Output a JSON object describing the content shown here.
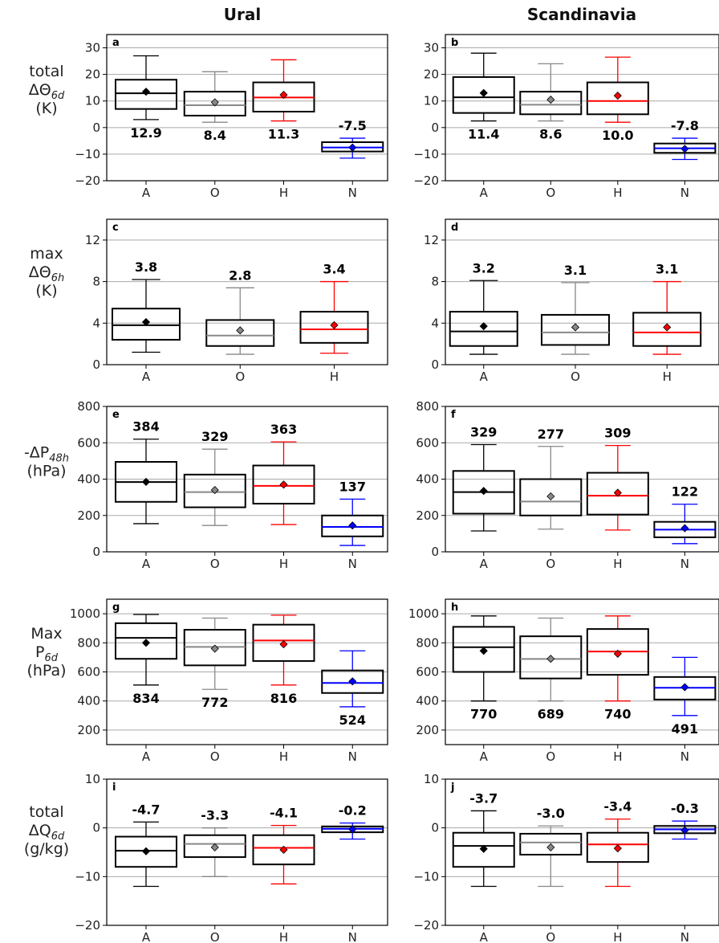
{
  "figure": {
    "column_titles": [
      "Ural",
      "Scandinavia"
    ],
    "row_labels": [
      {
        "lines": [
          "total",
          "ΔΘ|6d",
          "(K)"
        ]
      },
      {
        "lines": [
          "max",
          "ΔΘ|6h",
          "(K)"
        ]
      },
      {
        "lines": [
          "-ΔP|48h",
          "(hPa)"
        ]
      },
      {
        "lines": [
          "Max",
          "P|6d",
          "(hPa)"
        ]
      },
      {
        "lines": [
          "total",
          "ΔQ|6d",
          "(g/kg)"
        ]
      }
    ]
  },
  "colors": {
    "A": "#000000",
    "O": "#888888",
    "H": "#ff0000",
    "N": "#0000ff",
    "grid": "#aaaaaa"
  },
  "chart_data": [
    {
      "panel": "a",
      "type": "box",
      "column": "Ural",
      "row": 0,
      "ylim": [
        -20,
        35
      ],
      "yticks": [
        -20,
        -10,
        0,
        10,
        20,
        30
      ],
      "ytick_labels": [
        "−20",
        "−10",
        "0",
        "10",
        "20",
        "30"
      ],
      "categories": [
        "A",
        "O",
        "H",
        "N"
      ],
      "boxes": [
        {
          "cat": "A",
          "whislo": 3,
          "q1": 7,
          "med": 12.9,
          "q3": 18,
          "whishi": 27,
          "mean": 13.5,
          "label": "12.9",
          "label_pos": "below"
        },
        {
          "cat": "O",
          "whislo": 2,
          "q1": 4.5,
          "med": 8.4,
          "q3": 13.5,
          "whishi": 21,
          "mean": 9.5,
          "label": "8.4",
          "label_pos": "below"
        },
        {
          "cat": "H",
          "whislo": 2.5,
          "q1": 6,
          "med": 11.3,
          "q3": 17,
          "whishi": 25.5,
          "mean": 12.3,
          "label": "11.3",
          "label_pos": "below"
        },
        {
          "cat": "N",
          "whislo": -11.5,
          "q1": -9,
          "med": -7.5,
          "q3": -5.5,
          "whishi": -4,
          "mean": -7.5,
          "label": "-7.5",
          "label_pos": "above"
        }
      ]
    },
    {
      "panel": "b",
      "type": "box",
      "column": "Scandinavia",
      "row": 0,
      "ylim": [
        -20,
        35
      ],
      "yticks": [
        -20,
        -10,
        0,
        10,
        20,
        30
      ],
      "ytick_labels": [
        "−20",
        "−10",
        "0",
        "10",
        "20",
        "30"
      ],
      "categories": [
        "A",
        "O",
        "H",
        "N"
      ],
      "boxes": [
        {
          "cat": "A",
          "whislo": 2.5,
          "q1": 5.5,
          "med": 11.4,
          "q3": 19,
          "whishi": 28,
          "mean": 13,
          "label": "11.4",
          "label_pos": "below"
        },
        {
          "cat": "O",
          "whislo": 2.5,
          "q1": 5,
          "med": 8.6,
          "q3": 13.5,
          "whishi": 24,
          "mean": 10.5,
          "label": "8.6",
          "label_pos": "below"
        },
        {
          "cat": "H",
          "whislo": 2,
          "q1": 5,
          "med": 10.0,
          "q3": 17,
          "whishi": 26.5,
          "mean": 12,
          "label": "10.0",
          "label_pos": "below"
        },
        {
          "cat": "N",
          "whislo": -12,
          "q1": -9.5,
          "med": -7.8,
          "q3": -6,
          "whishi": -4,
          "mean": -8,
          "label": "-7.8",
          "label_pos": "above"
        }
      ]
    },
    {
      "panel": "c",
      "type": "box",
      "column": "Ural",
      "row": 1,
      "ylim": [
        0,
        14
      ],
      "yticks": [
        0,
        4,
        8,
        12
      ],
      "ytick_labels": [
        "0",
        "4",
        "8",
        "12"
      ],
      "categories": [
        "A",
        "O",
        "H"
      ],
      "boxes": [
        {
          "cat": "A",
          "whislo": 1.2,
          "q1": 2.4,
          "med": 3.8,
          "q3": 5.4,
          "whishi": 8.2,
          "mean": 4.1,
          "label": "3.8",
          "label_pos": "above"
        },
        {
          "cat": "O",
          "whislo": 1.0,
          "q1": 1.8,
          "med": 2.8,
          "q3": 4.3,
          "whishi": 7.4,
          "mean": 3.3,
          "label": "2.8",
          "label_pos": "above"
        },
        {
          "cat": "H",
          "whislo": 1.1,
          "q1": 2.1,
          "med": 3.4,
          "q3": 5.1,
          "whishi": 8.0,
          "mean": 3.8,
          "label": "3.4",
          "label_pos": "above"
        }
      ]
    },
    {
      "panel": "d",
      "type": "box",
      "column": "Scandinavia",
      "row": 1,
      "ylim": [
        0,
        14
      ],
      "yticks": [
        0,
        4,
        8,
        12
      ],
      "ytick_labels": [
        "0",
        "4",
        "8",
        "12"
      ],
      "categories": [
        "A",
        "O",
        "H"
      ],
      "boxes": [
        {
          "cat": "A",
          "whislo": 1.0,
          "q1": 1.8,
          "med": 3.2,
          "q3": 5.1,
          "whishi": 8.1,
          "mean": 3.7,
          "label": "3.2",
          "label_pos": "above"
        },
        {
          "cat": "O",
          "whislo": 1.0,
          "q1": 1.9,
          "med": 3.1,
          "q3": 4.8,
          "whishi": 7.9,
          "mean": 3.6,
          "label": "3.1",
          "label_pos": "above"
        },
        {
          "cat": "H",
          "whislo": 1.0,
          "q1": 1.8,
          "med": 3.1,
          "q3": 5.0,
          "whishi": 8.0,
          "mean": 3.6,
          "label": "3.1",
          "label_pos": "above"
        }
      ]
    },
    {
      "panel": "e",
      "type": "box",
      "column": "Ural",
      "row": 2,
      "ylim": [
        0,
        800
      ],
      "yticks": [
        0,
        200,
        400,
        600,
        800
      ],
      "ytick_labels": [
        "0",
        "200",
        "400",
        "600",
        "800"
      ],
      "categories": [
        "A",
        "O",
        "H",
        "N"
      ],
      "boxes": [
        {
          "cat": "A",
          "whislo": 155,
          "q1": 275,
          "med": 384,
          "q3": 495,
          "whishi": 620,
          "mean": 385,
          "label": "384",
          "label_pos": "above"
        },
        {
          "cat": "O",
          "whislo": 145,
          "q1": 245,
          "med": 329,
          "q3": 425,
          "whishi": 565,
          "mean": 340,
          "label": "329",
          "label_pos": "above"
        },
        {
          "cat": "H",
          "whislo": 150,
          "q1": 265,
          "med": 363,
          "q3": 475,
          "whishi": 605,
          "mean": 370,
          "label": "363",
          "label_pos": "above"
        },
        {
          "cat": "N",
          "whislo": 35,
          "q1": 85,
          "med": 137,
          "q3": 200,
          "whishi": 290,
          "mean": 145,
          "label": "137",
          "label_pos": "above"
        }
      ]
    },
    {
      "panel": "f",
      "type": "box",
      "column": "Scandinavia",
      "row": 2,
      "ylim": [
        0,
        800
      ],
      "yticks": [
        0,
        200,
        400,
        600,
        800
      ],
      "ytick_labels": [
        "0",
        "200",
        "400",
        "600",
        "800"
      ],
      "categories": [
        "A",
        "O",
        "H",
        "N"
      ],
      "boxes": [
        {
          "cat": "A",
          "whislo": 115,
          "q1": 210,
          "med": 329,
          "q3": 445,
          "whishi": 590,
          "mean": 335,
          "label": "329",
          "label_pos": "above"
        },
        {
          "cat": "O",
          "whislo": 125,
          "q1": 200,
          "med": 277,
          "q3": 400,
          "whishi": 580,
          "mean": 305,
          "label": "277",
          "label_pos": "above"
        },
        {
          "cat": "H",
          "whislo": 120,
          "q1": 205,
          "med": 309,
          "q3": 435,
          "whishi": 585,
          "mean": 325,
          "label": "309",
          "label_pos": "above"
        },
        {
          "cat": "N",
          "whislo": 45,
          "q1": 80,
          "med": 122,
          "q3": 165,
          "whishi": 262,
          "mean": 130,
          "label": "122",
          "label_pos": "above"
        }
      ]
    },
    {
      "panel": "g",
      "type": "box",
      "column": "Ural",
      "row": 3,
      "ylim": [
        100,
        1100
      ],
      "yticks": [
        200,
        400,
        600,
        800,
        1000
      ],
      "ytick_labels": [
        "200",
        "400",
        "600",
        "800",
        "1000"
      ],
      "categories": [
        "A",
        "O",
        "H",
        "N"
      ],
      "boxes": [
        {
          "cat": "A",
          "whislo": 510,
          "q1": 690,
          "med": 834,
          "q3": 935,
          "whishi": 995,
          "mean": 800,
          "label": "834",
          "label_pos": "below"
        },
        {
          "cat": "O",
          "whislo": 480,
          "q1": 645,
          "med": 772,
          "q3": 890,
          "whishi": 970,
          "mean": 760,
          "label": "772",
          "label_pos": "below"
        },
        {
          "cat": "H",
          "whislo": 510,
          "q1": 675,
          "med": 816,
          "q3": 925,
          "whishi": 990,
          "mean": 790,
          "label": "816",
          "label_pos": "below"
        },
        {
          "cat": "N",
          "whislo": 360,
          "q1": 455,
          "med": 524,
          "q3": 610,
          "whishi": 745,
          "mean": 535,
          "label": "524",
          "label_pos": "below"
        }
      ]
    },
    {
      "panel": "h",
      "type": "box",
      "column": "Scandinavia",
      "row": 3,
      "ylim": [
        100,
        1100
      ],
      "yticks": [
        200,
        400,
        600,
        800,
        1000
      ],
      "ytick_labels": [
        "200",
        "400",
        "600",
        "800",
        "1000"
      ],
      "categories": [
        "A",
        "O",
        "H",
        "N"
      ],
      "boxes": [
        {
          "cat": "A",
          "whislo": 400,
          "q1": 600,
          "med": 770,
          "q3": 910,
          "whishi": 985,
          "mean": 745,
          "label": "770",
          "label_pos": "below"
        },
        {
          "cat": "O",
          "whislo": 400,
          "q1": 555,
          "med": 689,
          "q3": 845,
          "whishi": 970,
          "mean": 690,
          "label": "689",
          "label_pos": "below"
        },
        {
          "cat": "H",
          "whislo": 400,
          "q1": 580,
          "med": 740,
          "q3": 895,
          "whishi": 985,
          "mean": 725,
          "label": "740",
          "label_pos": "below"
        },
        {
          "cat": "N",
          "whislo": 300,
          "q1": 410,
          "med": 491,
          "q3": 565,
          "whishi": 700,
          "mean": 495,
          "label": "491",
          "label_pos": "below"
        }
      ]
    },
    {
      "panel": "i",
      "type": "box",
      "column": "Ural",
      "row": 4,
      "ylim": [
        -20,
        10
      ],
      "yticks": [
        -20,
        -10,
        0,
        10
      ],
      "ytick_labels": [
        "−20",
        "−10",
        "0",
        "10"
      ],
      "categories": [
        "A",
        "O",
        "H",
        "N"
      ],
      "boxes": [
        {
          "cat": "A",
          "whislo": -12,
          "q1": -8,
          "med": -4.7,
          "q3": -1.8,
          "whishi": 1.2,
          "mean": -4.8,
          "label": "-4.7",
          "label_pos": "above"
        },
        {
          "cat": "O",
          "whislo": -10,
          "q1": -6,
          "med": -3.3,
          "q3": -1.5,
          "whishi": 0,
          "mean": -4.0,
          "label": "-3.3",
          "label_pos": "above"
        },
        {
          "cat": "H",
          "whislo": -11.5,
          "q1": -7.5,
          "med": -4.1,
          "q3": -1.5,
          "whishi": 0.5,
          "mean": -4.5,
          "label": "-4.1",
          "label_pos": "above"
        },
        {
          "cat": "N",
          "whislo": -2.3,
          "q1": -0.9,
          "med": -0.2,
          "q3": 0.3,
          "whishi": 1.0,
          "mean": -0.3,
          "label": "-0.2",
          "label_pos": "above"
        }
      ]
    },
    {
      "panel": "j",
      "type": "box",
      "column": "Scandinavia",
      "row": 4,
      "ylim": [
        -20,
        10
      ],
      "yticks": [
        -20,
        -10,
        0,
        10
      ],
      "ytick_labels": [
        "−20",
        "−10",
        "0",
        "10"
      ],
      "categories": [
        "A",
        "O",
        "H",
        "N"
      ],
      "boxes": [
        {
          "cat": "A",
          "whislo": -12,
          "q1": -8,
          "med": -3.7,
          "q3": -1,
          "whishi": 3.5,
          "mean": -4.3,
          "label": "-3.7",
          "label_pos": "above"
        },
        {
          "cat": "O",
          "whislo": -12,
          "q1": -5.5,
          "med": -3.0,
          "q3": -1.2,
          "whishi": 0.4,
          "mean": -4.0,
          "label": "-3.0",
          "label_pos": "above"
        },
        {
          "cat": "H",
          "whislo": -12,
          "q1": -7,
          "med": -3.4,
          "q3": -1,
          "whishi": 1.8,
          "mean": -4.2,
          "label": "-3.4",
          "label_pos": "above"
        },
        {
          "cat": "N",
          "whislo": -2.3,
          "q1": -1.1,
          "med": -0.3,
          "q3": 0.4,
          "whishi": 1.4,
          "mean": -0.5,
          "label": "-0.3",
          "label_pos": "above"
        }
      ]
    }
  ]
}
